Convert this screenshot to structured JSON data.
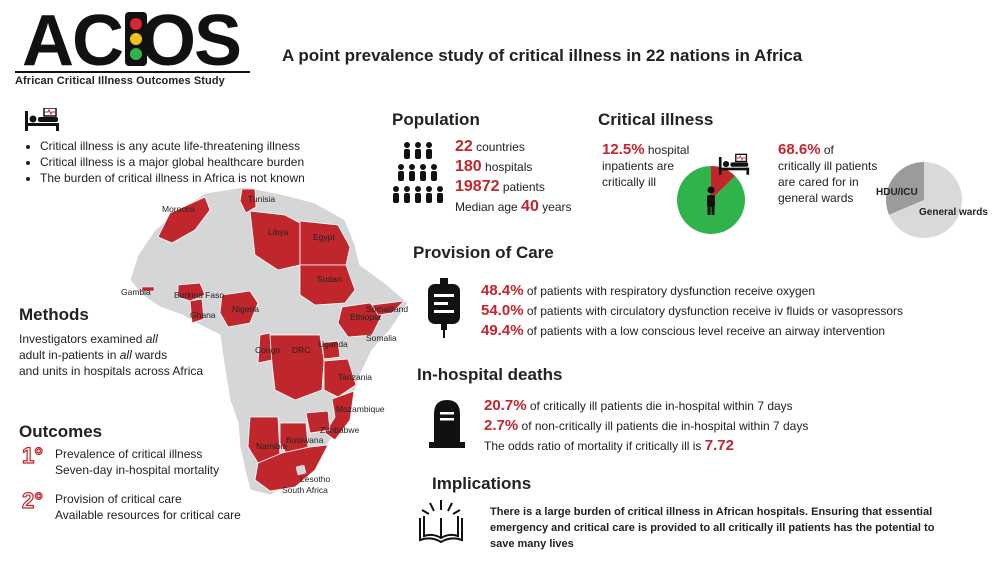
{
  "logo": {
    "word": "ACIOS",
    "subtitle": "African Critical Illness Outcomes Study"
  },
  "title": "A point prevalence study of critical illness in 22 nations in Africa",
  "intro": {
    "icon": "hospital-bed-icon",
    "bullets": [
      "Critical illness is any acute life-threatening illness",
      "Critical illness is a major global healthcare burden",
      "The burden of critical illness in Africa is not known"
    ]
  },
  "map": {
    "countries": [
      "Morocco",
      "Tunisia",
      "Libya",
      "Egypt",
      "Sudan",
      "Gambia",
      "Burkina Faso",
      "Ghana",
      "Nigeria",
      "Ethiopia",
      "Somaliland",
      "Somalia",
      "Uganda",
      "Congo",
      "DRC",
      "Tanzania",
      "Mozambique",
      "Zimbabwe",
      "Botswana",
      "Namibia",
      "Lesotho",
      "South Africa"
    ]
  },
  "methods": {
    "title": "Methods",
    "line1_a": "Investigators examined ",
    "line1_b": "all",
    "line2_a": "adult in-patients in ",
    "line2_b": "all",
    "line2_c": " wards",
    "line3": "and units in hospitals across Africa"
  },
  "outcomes": {
    "title": "Outcomes",
    "primary_badge": "1°",
    "primary": [
      "Prevalence of critical illness",
      "Seven-day in-hospital mortality"
    ],
    "secondary_badge": "2°",
    "secondary": [
      "Provision of critical care",
      "Available resources for critical care"
    ]
  },
  "population": {
    "title": "Population",
    "countries_n": "22",
    "countries_label": " countries",
    "hospitals_n": "180",
    "hospitals_label": " hospitals",
    "patients_n": "19872",
    "patients_label": " patients",
    "age_label": "Median age ",
    "age_n": "40",
    "age_unit": " years"
  },
  "critical_illness": {
    "title": "Critical illness",
    "left_pct": "12.5%",
    "left_a": " hospital",
    "left_b": "inpatients are",
    "left_c": "critically ill",
    "right_pct": "68.6%",
    "right_a": " of",
    "right_b": "critically ill patients",
    "right_c": "are cared for in",
    "right_d": "general wards",
    "pie1": {
      "critically_ill_pct": 12.5,
      "colors": {
        "ill": "#c0272d",
        "not_ill": "#2fb34a"
      }
    },
    "pie2": {
      "general_wards_pct": 68.6,
      "hdu_label": "HDU/ICU",
      "ward_label": "General wards",
      "colors": {
        "hdu": "#9b9b9b",
        "ward": "#d9d9d9"
      }
    }
  },
  "provision": {
    "title": "Provision of Care",
    "rows": [
      {
        "pct": "48.4%",
        "text": " of patients with respiratory dysfunction receive oxygen"
      },
      {
        "pct": "54.0%",
        "text": " of patients with circulatory dysfunction receive iv fluids or vasopressors"
      },
      {
        "pct": "49.4%",
        "text": " of patients with a low conscious level receive an airway intervention"
      }
    ]
  },
  "deaths": {
    "title": "In-hospital deaths",
    "rows": [
      {
        "pct": "20.7%",
        "text": " of critically ill patients die in-hospital within 7 days"
      },
      {
        "pct": "2.7%",
        "text": " of non-critically ill patients die in-hospital within 7 days"
      }
    ],
    "odds_text": "The odds ratio of mortality if critically ill is ",
    "odds_value": "7.72"
  },
  "implications": {
    "title": "Implications",
    "text": "There is a large burden of critical illness in African hospitals. Ensuring that essential emergency and critical care is provided to all critically ill patients has the potential to save many lives"
  },
  "colors": {
    "accent": "#c0272d",
    "map_grey": "#d4d6d8",
    "map_red": "#c0272d"
  }
}
